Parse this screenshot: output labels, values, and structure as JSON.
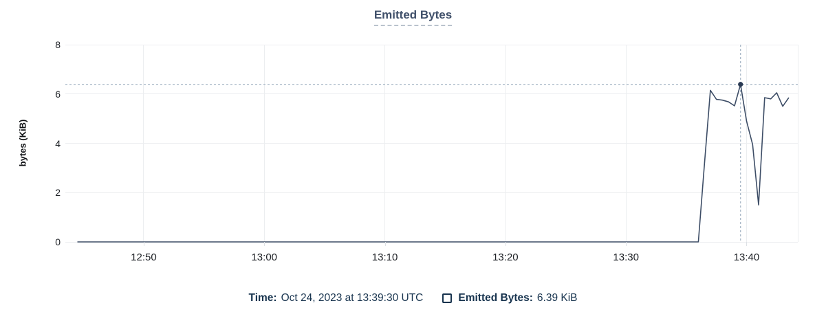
{
  "title": "Emitted Bytes",
  "y_axis": {
    "label": "bytes (KiB)"
  },
  "footer": {
    "time_label": "Time:",
    "time_value": "Oct 24, 2023 at 13:39:30 UTC",
    "legend_label": "Emitted Bytes:",
    "legend_value": "6.39 KiB"
  },
  "colors": {
    "line": "#3d4d66",
    "marker": "#2a3a53",
    "crosshair": "#a2b3c2",
    "grid": "#eceef0",
    "title_text": "#40506a",
    "footer_text": "#17334e",
    "axis_text": "#202328"
  },
  "chart_data": {
    "type": "line",
    "title": "Emitted Bytes",
    "xlabel": "",
    "ylabel": "bytes (KiB)",
    "unit": "KiB",
    "ylim": [
      0,
      8
    ],
    "y_ticks": [
      0,
      2,
      4,
      6,
      8
    ],
    "x_ticks": [
      "12:50",
      "13:00",
      "13:10",
      "13:20",
      "13:30",
      "13:40"
    ],
    "x_domain": [
      "12:43:30",
      "13:44:15"
    ],
    "grid": true,
    "legend_position": "bottom",
    "series_name": "Emitted Bytes",
    "resolution_seconds": 30,
    "points": [
      [
        "12:44:30",
        0
      ],
      [
        "13:36:00",
        0
      ],
      [
        "13:36:30",
        3.1
      ],
      [
        "13:37:00",
        6.15
      ],
      [
        "13:37:30",
        5.78
      ],
      [
        "13:38:00",
        5.75
      ],
      [
        "13:38:30",
        5.68
      ],
      [
        "13:39:00",
        5.52
      ],
      [
        "13:39:30",
        6.39
      ],
      [
        "13:40:00",
        4.9
      ],
      [
        "13:40:30",
        3.95
      ],
      [
        "13:41:00",
        1.5
      ],
      [
        "13:41:30",
        5.85
      ],
      [
        "13:42:00",
        5.8
      ],
      [
        "13:42:30",
        6.05
      ],
      [
        "13:43:00",
        5.5
      ],
      [
        "13:43:30",
        5.85
      ]
    ],
    "crosshair": {
      "time": "13:39:30",
      "value": 6.39
    }
  }
}
